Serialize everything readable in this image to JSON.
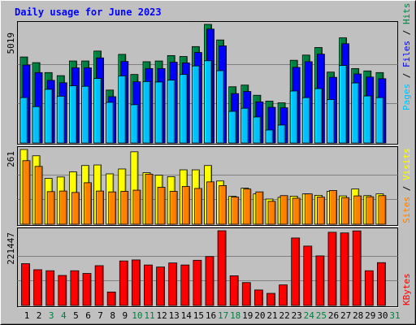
{
  "chart_data": [
    {
      "type": "bar",
      "title": "Daily usage for June 2023",
      "xlabel": "",
      "ylabel": "Pages / Files / Hits",
      "ymax_label": "5019",
      "ylim": [
        0,
        5019
      ],
      "categories": [
        "1",
        "2",
        "3",
        "4",
        "5",
        "6",
        "7",
        "8",
        "9",
        "10",
        "11",
        "12",
        "13",
        "14",
        "15",
        "16",
        "17",
        "18",
        "19",
        "20",
        "21",
        "22",
        "23",
        "24",
        "25",
        "26",
        "27",
        "28",
        "29",
        "30",
        "31"
      ],
      "series": [
        {
          "name": "Hits",
          "color": "#008040",
          "values": [
            3640,
            3400,
            2980,
            2850,
            3470,
            3470,
            3890,
            2240,
            3750,
            2900,
            3440,
            3470,
            3700,
            3660,
            4080,
            5019,
            4360,
            2380,
            2450,
            2020,
            1770,
            1700,
            3500,
            3720,
            4040,
            3000,
            4450,
            3150,
            3050,
            2980,
            null
          ]
        },
        {
          "name": "Files",
          "color": "#0000ff",
          "values": [
            3300,
            2980,
            2650,
            2550,
            3180,
            3180,
            3600,
            1960,
            3450,
            2590,
            3150,
            3150,
            3420,
            3390,
            3830,
            4820,
            4110,
            2090,
            2180,
            1740,
            1510,
            1490,
            3200,
            3440,
            3760,
            2780,
            4200,
            2920,
            2790,
            2720,
            null
          ]
        },
        {
          "name": "Pages",
          "color": "#00c0ff",
          "values": [
            1920,
            1540,
            2270,
            1980,
            2420,
            2400,
            2730,
            1720,
            2840,
            1620,
            2600,
            2580,
            2660,
            2900,
            3260,
            3480,
            3060,
            1340,
            1470,
            1100,
            550,
            760,
            2200,
            1920,
            2300,
            1840,
            3280,
            2540,
            1990,
            1920,
            null
          ]
        }
      ]
    },
    {
      "type": "bar",
      "ylabel": "Sites / Visits",
      "ymax_label": "261",
      "ylim": [
        0,
        261
      ],
      "categories": [
        "1",
        "2",
        "3",
        "4",
        "5",
        "6",
        "7",
        "8",
        "9",
        "10",
        "11",
        "12",
        "13",
        "14",
        "15",
        "16",
        "17",
        "18",
        "19",
        "20",
        "21",
        "22",
        "23",
        "24",
        "25",
        "26",
        "27",
        "28",
        "29",
        "30",
        "31"
      ],
      "series": [
        {
          "name": "Visits",
          "color": "#ffff00",
          "values": [
            261,
            239,
            160,
            165,
            183,
            205,
            207,
            176,
            193,
            253,
            180,
            171,
            166,
            190,
            190,
            205,
            151,
            98,
            126,
            106,
            88,
            94,
            98,
            106,
            101,
            115,
            99,
            123,
            100,
            106,
            null
          ]
        },
        {
          "name": "Sites",
          "color": "#ff8000",
          "values": [
            222,
            202,
            114,
            116,
            111,
            145,
            116,
            113,
            115,
            119,
            175,
            129,
            115,
            132,
            125,
            148,
            135,
            95,
            123,
            113,
            80,
            100,
            91,
            106,
            95,
            118,
            93,
            99,
            96,
            100,
            null
          ]
        }
      ]
    },
    {
      "type": "bar",
      "ylabel": "KBytes",
      "ymax_label": "221447",
      "ylim": [
        0,
        221447
      ],
      "categories": [
        "1",
        "2",
        "3",
        "4",
        "5",
        "6",
        "7",
        "8",
        "9",
        "10",
        "11",
        "12",
        "13",
        "14",
        "15",
        "16",
        "17",
        "18",
        "19",
        "20",
        "21",
        "22",
        "23",
        "24",
        "25",
        "26",
        "27",
        "28",
        "29",
        "30",
        "31"
      ],
      "series": [
        {
          "name": "KBytes",
          "color": "#ff0000",
          "values": [
            124000,
            106000,
            103000,
            89000,
            103000,
            95000,
            118000,
            40000,
            132000,
            135000,
            120000,
            114000,
            126000,
            120000,
            134000,
            145000,
            221447,
            88000,
            68000,
            46000,
            36000,
            61000,
            200000,
            176000,
            147000,
            217000,
            215000,
            221000,
            103000,
            127000,
            null
          ]
        }
      ]
    }
  ],
  "weekend_days": [
    "3",
    "4",
    "10",
    "11",
    "17",
    "18",
    "24",
    "25",
    "31"
  ],
  "colors": {
    "background": "#c0c0c0",
    "title": "#0000ff",
    "weekday_label": "#000000",
    "weekend_label": "#008040",
    "axis": "#000000",
    "grid": "#808080",
    "frame_light": "#ffffff",
    "frame_dark": "#808080"
  }
}
